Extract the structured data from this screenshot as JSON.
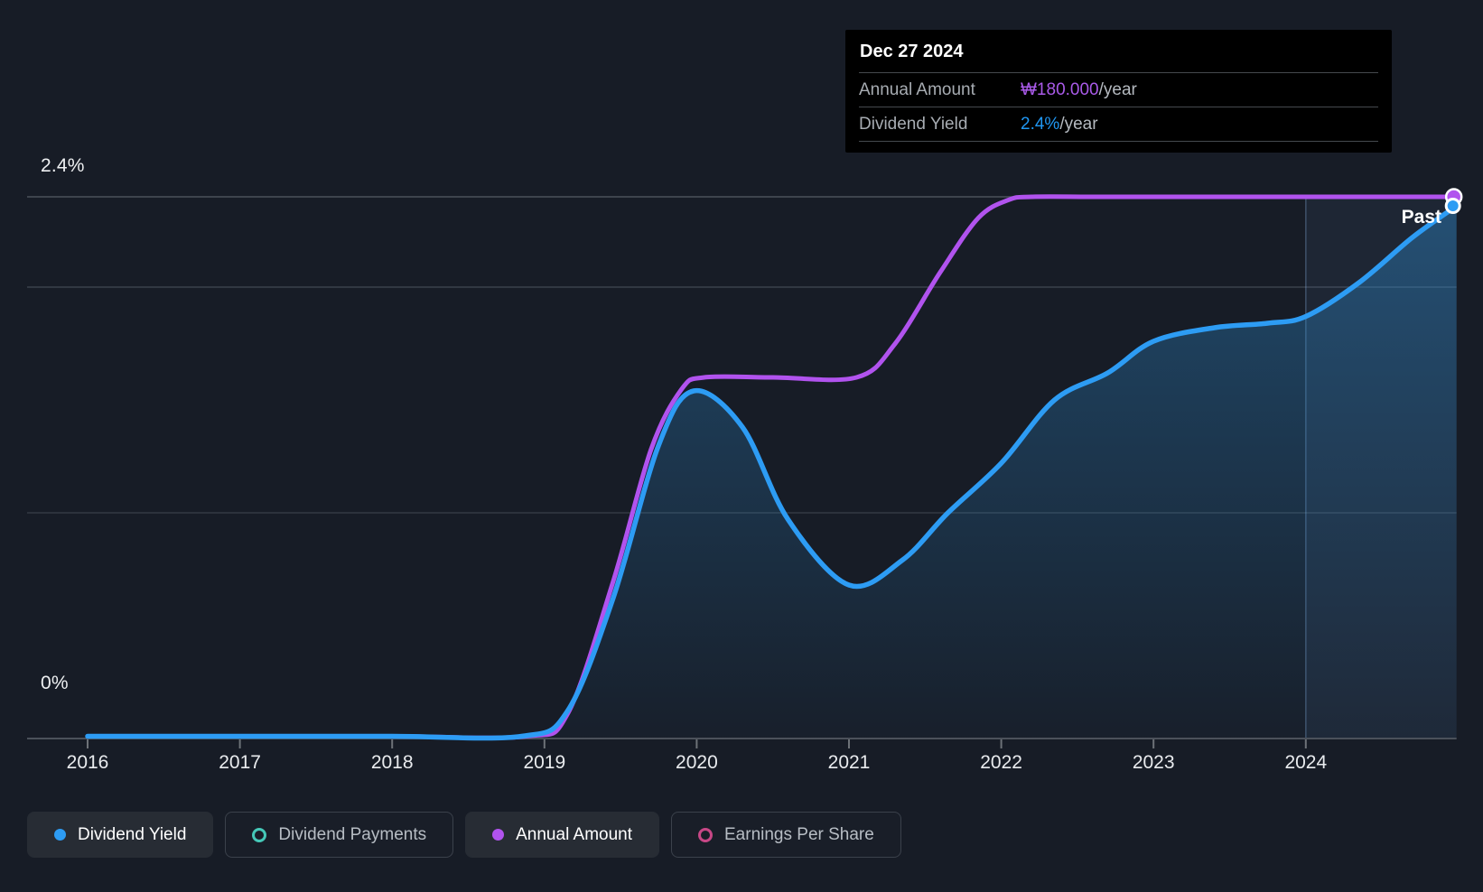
{
  "annotations": {
    "past_label": "Past"
  },
  "axis": {
    "y_max_label": "2.4%",
    "y_zero_label": "0%",
    "year_labels": [
      "2016",
      "2017",
      "2018",
      "2019",
      "2020",
      "2021",
      "2022",
      "2023",
      "2024"
    ]
  },
  "tooltip": {
    "date": "Dec 27 2024",
    "rows": [
      {
        "label": "Annual Amount",
        "value": "₩180.000",
        "suffix": "/year",
        "color": "#a95ae8"
      },
      {
        "label": "Dividend Yield",
        "value": "2.4%",
        "suffix": "/year",
        "color": "#2097f3"
      }
    ]
  },
  "legend": [
    {
      "label": "Dividend Yield",
      "marker": "filled",
      "color": "#2d9cf4",
      "active": true
    },
    {
      "label": "Dividend Payments",
      "marker": "ring",
      "color": "#45c8b8",
      "active": false
    },
    {
      "label": "Annual Amount",
      "marker": "filled",
      "color": "#b153ee",
      "active": true
    },
    {
      "label": "Earnings Per Share",
      "marker": "ring",
      "color": "#c74786",
      "active": false
    }
  ],
  "chart_data": {
    "type": "area",
    "x_axis": {
      "ticks": [
        2016,
        2017,
        2018,
        2019,
        2020,
        2021,
        2022,
        2023,
        2024
      ],
      "range": [
        2015.6,
        2024.99
      ]
    },
    "y_axis_percent": {
      "range": [
        0,
        2.4
      ],
      "gridlines": [
        1.0,
        2.0,
        2.4
      ],
      "top_label": "2.4%",
      "zero_label": "0%"
    },
    "y_axis_amount": {
      "range": [
        0,
        180
      ]
    },
    "past_band": {
      "start": 2024.0,
      "label": "Past"
    },
    "series": [
      {
        "name": "Dividend Yield",
        "unit": "%",
        "axis": "percent",
        "color": "#2d9cf4",
        "area_fill": true,
        "end_marker": true,
        "points": [
          [
            2016,
            0
          ],
          [
            2017,
            0
          ],
          [
            2018,
            0
          ],
          [
            2018.85,
            0
          ],
          [
            2019.15,
            0.12
          ],
          [
            2019.45,
            0.62
          ],
          [
            2019.75,
            1.3
          ],
          [
            2019.98,
            1.54
          ],
          [
            2020.3,
            1.38
          ],
          [
            2020.6,
            0.97
          ],
          [
            2021,
            0.68
          ],
          [
            2021.35,
            0.79
          ],
          [
            2021.65,
            1.0
          ],
          [
            2022,
            1.22
          ],
          [
            2022.35,
            1.5
          ],
          [
            2022.7,
            1.62
          ],
          [
            2023,
            1.76
          ],
          [
            2023.4,
            1.82
          ],
          [
            2023.75,
            1.84
          ],
          [
            2024,
            1.87
          ],
          [
            2024.35,
            2.02
          ],
          [
            2024.7,
            2.22
          ],
          [
            2024.99,
            2.36
          ]
        ]
      },
      {
        "name": "Annual Amount",
        "unit": "KRW",
        "axis": "amount",
        "color": "#b153ee",
        "area_fill": false,
        "end_marker": true,
        "points": [
          [
            2016,
            0
          ],
          [
            2017,
            0
          ],
          [
            2018,
            0
          ],
          [
            2018.88,
            0
          ],
          [
            2019.15,
            8
          ],
          [
            2019.45,
            52
          ],
          [
            2019.7,
            96
          ],
          [
            2019.9,
            116
          ],
          [
            2020.05,
            120
          ],
          [
            2020.5,
            120
          ],
          [
            2021.05,
            120
          ],
          [
            2021.3,
            131
          ],
          [
            2021.6,
            155
          ],
          [
            2021.85,
            173
          ],
          [
            2022.05,
            179
          ],
          [
            2022.2,
            180
          ],
          [
            2022.6,
            180
          ],
          [
            2023,
            180
          ],
          [
            2023.5,
            180
          ],
          [
            2024,
            180
          ],
          [
            2024.5,
            180
          ],
          [
            2024.99,
            180
          ]
        ]
      }
    ]
  },
  "colors": {
    "background": "#171c26",
    "tooltip_background": "#000000",
    "grid_major": "#4b515a",
    "grid_minor": "#343a43",
    "past_band_fill": "rgba(122,176,240,0.07)",
    "past_band_edge": "rgba(150,195,250,0.30)"
  }
}
